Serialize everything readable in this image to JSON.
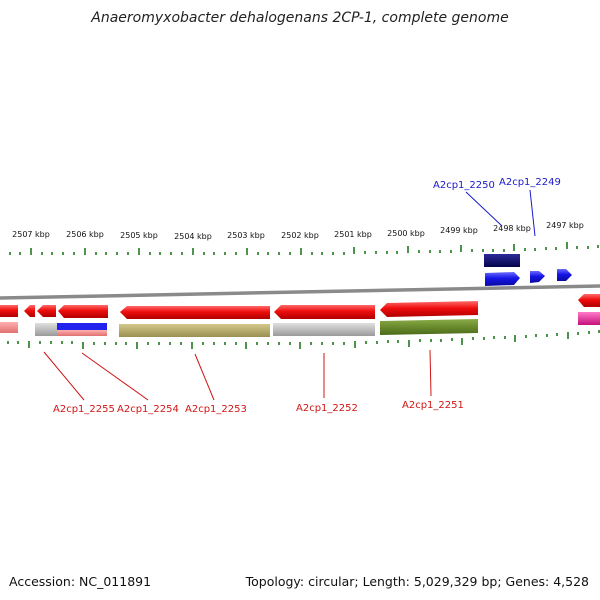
{
  "title": "Anaeromyxobacter dehalogenans 2CP-1, complete genome",
  "footer": {
    "accession": "Accession: NC_011891",
    "summary": "Topology: circular; Length: 5,029,329 bp; Genes: 4,528"
  },
  "kbp_ticks": [
    "2507 kbp",
    "2506 kbp",
    "2505 kbp",
    "2504 kbp",
    "2503 kbp",
    "2502 kbp",
    "2501 kbp",
    "2500 kbp",
    "2499 kbp",
    "2498 kbp",
    "2497 kbp"
  ],
  "colors": {
    "forward_gene": "#1515e6",
    "forward_gene_dark": "#0b0b6e",
    "reverse_gene": "#ee0d0d",
    "forward_label": "#1a1ac8",
    "reverse_label": "#d01515",
    "tick": "#1f7a1f",
    "backbone": "#8a8a8a",
    "feature_blue": "#2222ee",
    "feature_gray": "#bdbdbd",
    "feature_olive": "#b5aa6a",
    "feature_green": "#6a8a2a",
    "feature_salmon": "#f08a8a",
    "feature_pink": "#ee2aa0"
  },
  "gene_labels": {
    "forward": [
      "A2cp1_2250",
      "A2cp1_2249"
    ],
    "reverse": [
      "A2cp1_2255",
      "A2cp1_2254",
      "A2cp1_2253",
      "A2cp1_2252",
      "A2cp1_2251"
    ]
  }
}
